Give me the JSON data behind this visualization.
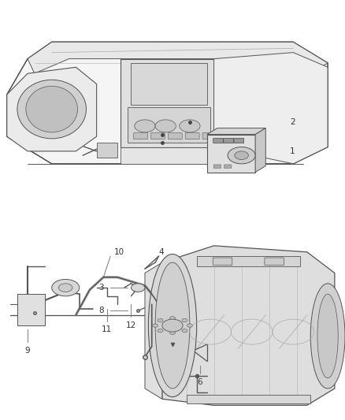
{
  "background_color": "#ffffff",
  "fig_width": 4.38,
  "fig_height": 5.33,
  "dpi": 100,
  "line_color": "#555555",
  "label_line_color": "#888888",
  "text_color": "#333333",
  "label_font_size": 7.5
}
